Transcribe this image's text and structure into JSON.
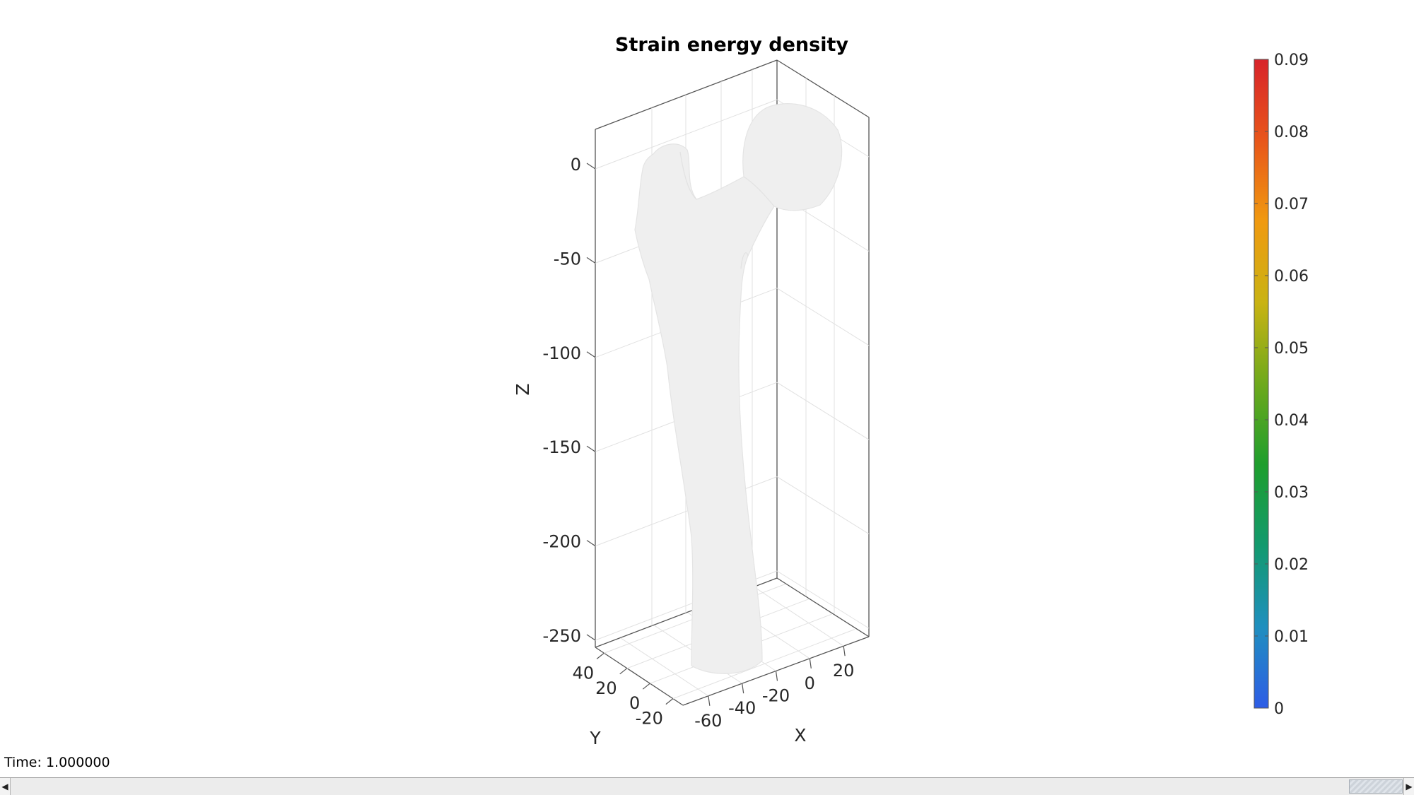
{
  "chart_data": {
    "type": "3d-surface",
    "title": "Strain energy density",
    "xlabel": "X",
    "ylabel": "Y",
    "zlabel": "Z",
    "x_ticks": [
      -60,
      -40,
      -20,
      0,
      20
    ],
    "y_ticks": [
      40,
      20,
      0,
      -20
    ],
    "z_ticks": [
      0,
      -50,
      -100,
      -150,
      -200,
      -250
    ],
    "grid": true,
    "colorbar": {
      "ticks": [
        0,
        0.01,
        0.02,
        0.03,
        0.04,
        0.05,
        0.06,
        0.07,
        0.08,
        0.09
      ],
      "range": [
        0,
        0.09
      ],
      "colormap": [
        "#2e5ce6",
        "#1f8fbf",
        "#139a6e",
        "#1e9e2d",
        "#6ea91c",
        "#c9b313",
        "#f09a10",
        "#e8561a",
        "#d8232a"
      ]
    },
    "surface_color": "#f0f0f0"
  },
  "status": {
    "time_label": "Time: 1.000000"
  },
  "scrollbar": {
    "left_arrow": "◀",
    "right_arrow": "▶"
  }
}
